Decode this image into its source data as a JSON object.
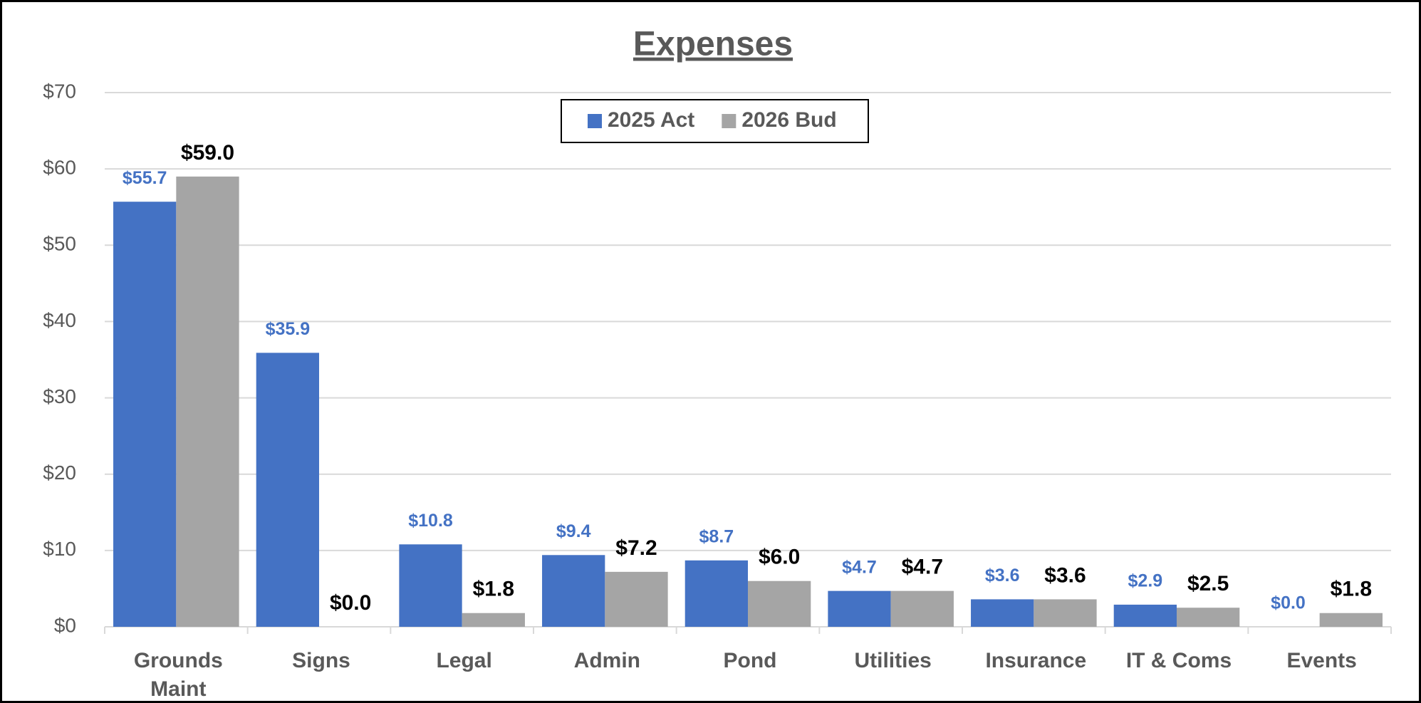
{
  "chart_data": {
    "type": "bar",
    "title": "Expenses",
    "categories": [
      "Grounds Maint",
      "Signs",
      "Legal",
      "Admin",
      "Pond",
      "Utilities",
      "Insurance",
      "IT & Coms",
      "Events"
    ],
    "series": [
      {
        "name": "2025 Act",
        "color": "#4472c4",
        "values": [
          55.7,
          35.9,
          10.8,
          9.4,
          8.7,
          4.7,
          3.6,
          2.9,
          0.0
        ],
        "value_labels": [
          "$55.7",
          "$35.9",
          "$10.8",
          "$9.4",
          "$8.7",
          "$4.7",
          "$3.6",
          "$2.9",
          "$0.0"
        ]
      },
      {
        "name": "2026 Bud",
        "color": "#a5a5a5",
        "values": [
          59.0,
          0.0,
          1.8,
          7.2,
          6.0,
          4.7,
          3.6,
          2.5,
          1.8
        ],
        "value_labels": [
          "$59.0",
          "$0.0",
          "$1.8",
          "$7.2",
          "$6.0",
          "$4.7",
          "$3.6",
          "$2.5",
          "$1.8"
        ]
      }
    ],
    "ylim": [
      0,
      70
    ],
    "yticks": [
      {
        "value": 0,
        "label": "$0"
      },
      {
        "value": 10,
        "label": "$10"
      },
      {
        "value": 20,
        "label": "$20"
      },
      {
        "value": 30,
        "label": "$30"
      },
      {
        "value": 40,
        "label": "$40"
      },
      {
        "value": 50,
        "label": "$50"
      },
      {
        "value": 60,
        "label": "$60"
      },
      {
        "value": 70,
        "label": "$70"
      }
    ],
    "grid": true,
    "legend": "top"
  }
}
